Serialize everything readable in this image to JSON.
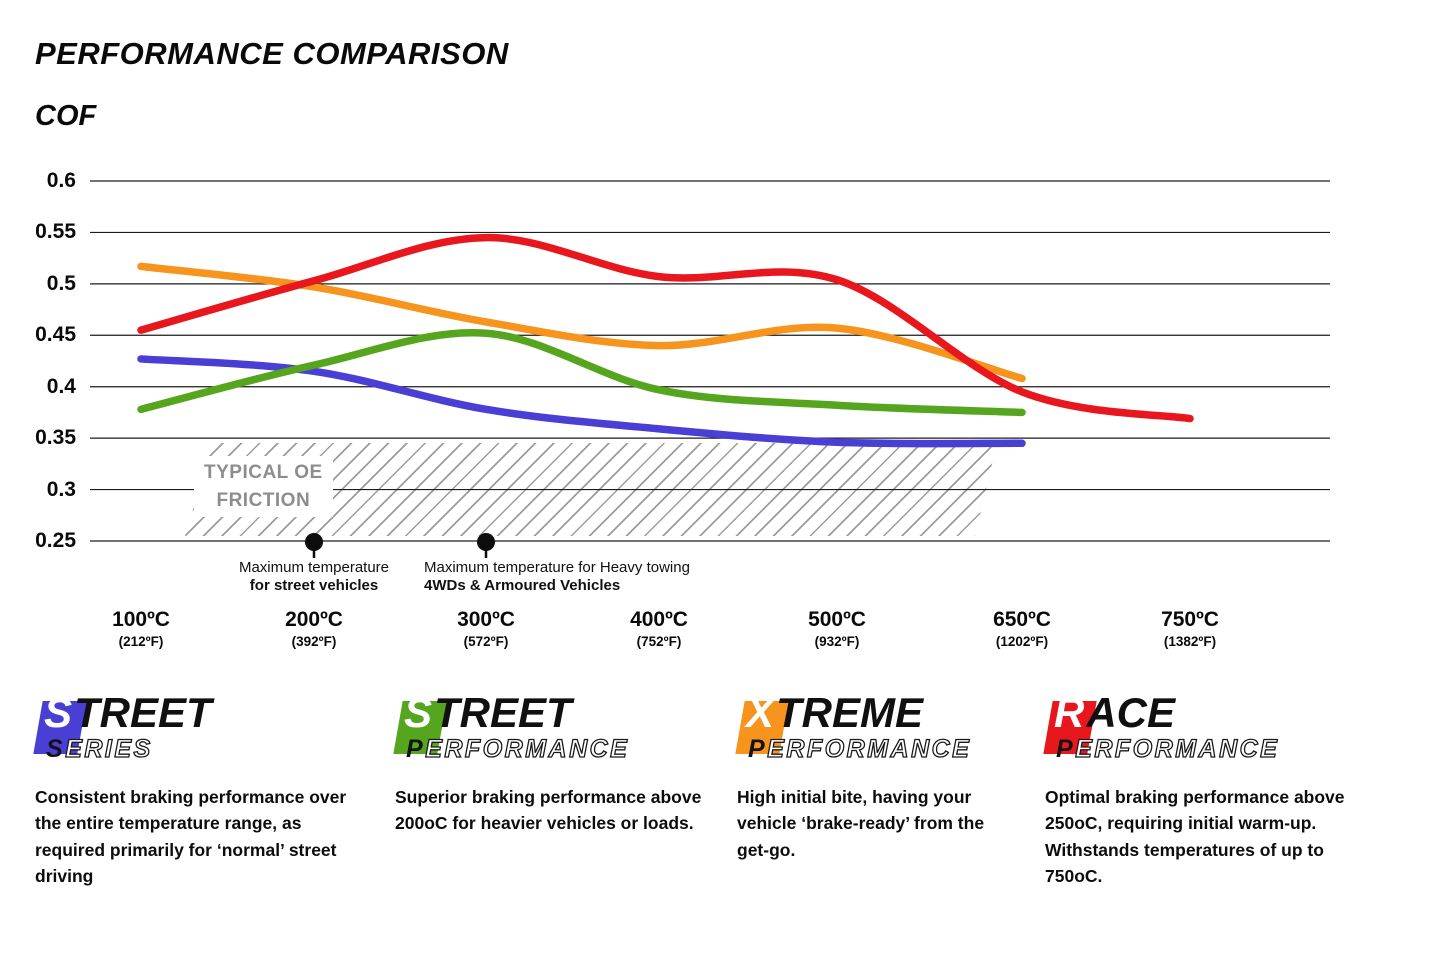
{
  "chart_data": {
    "type": "line",
    "title": "PERFORMANCE COMPARISON",
    "ylabel": "COF",
    "ylim": [
      0.25,
      0.6
    ],
    "grid": true,
    "y_ticks": [
      "0.6",
      "0.55",
      "0.5",
      "0.45",
      "0.4",
      "0.35",
      "0.3",
      "0.25"
    ],
    "y_tick_values": [
      0.6,
      0.55,
      0.5,
      0.45,
      0.4,
      0.35,
      0.3,
      0.25
    ],
    "categories": [
      {
        "c": "100ºC",
        "f": "(212ºF)"
      },
      {
        "c": "200ºC",
        "f": "(392ºF)"
      },
      {
        "c": "300ºC",
        "f": "(572ºF)"
      },
      {
        "c": "400ºC",
        "f": "(752ºF)"
      },
      {
        "c": "500ºC",
        "f": "(932ºF)"
      },
      {
        "c": "650ºC",
        "f": "(1202ºF)"
      },
      {
        "c": "750ºC",
        "f": "(1382ºF)"
      }
    ],
    "series": [
      {
        "name": "Street Series",
        "color": "#4a3fd5",
        "values": [
          0.427,
          0.415,
          0.378,
          0.359,
          0.346,
          0.345
        ]
      },
      {
        "name": "Street Performance",
        "color": "#56a51f",
        "values": [
          0.378,
          0.421,
          0.452,
          0.397,
          0.382,
          0.375
        ]
      },
      {
        "name": "Xtreme Performance",
        "color": "#f7941d",
        "values": [
          0.517,
          0.497,
          0.463,
          0.44,
          0.457,
          0.408
        ]
      },
      {
        "name": "Race Performance",
        "color": "#e8161d",
        "values": [
          0.455,
          0.503,
          0.545,
          0.507,
          0.504,
          0.395,
          0.369
        ]
      }
    ],
    "annotations": {
      "oe_band": {
        "line1": "TYPICAL OE",
        "line2": "FRICTION",
        "band_top": 0.345,
        "band_bottom": 0.252
      },
      "markers": [
        {
          "at": "200ºC",
          "line1": "Maximum temperature",
          "line2": "for street vehicles"
        },
        {
          "at": "300ºC",
          "line1": "Maximum temperature for Heavy towing",
          "line2": "4WDs & Armoured Vehicles"
        }
      ]
    }
  },
  "legend": {
    "items": [
      {
        "name": "Street Series",
        "color": "#4a3fd5",
        "l1_initial": "S",
        "l1_rest": "TREET",
        "l2_initial": "S",
        "l2_rest": "ERIES",
        "desc": "Consistent braking performance over the entire temperature range, as required primarily for ‘normal’ street driving"
      },
      {
        "name": "Street Performance",
        "color": "#56a51f",
        "l1_initial": "S",
        "l1_rest": "TREET",
        "l2_initial": "P",
        "l2_rest": "ERFORMANCE",
        "desc": "Superior braking performance above 200oC for heavier vehicles or loads."
      },
      {
        "name": "Xtreme Performance",
        "color": "#f7941d",
        "l1_initial": "X",
        "l1_rest": "TREME",
        "l2_initial": "P",
        "l2_rest": "ERFORMANCE",
        "desc": "High initial bite, having your vehicle ‘brake-ready’ from the get-go."
      },
      {
        "name": "Race Performance",
        "color": "#e8161d",
        "l1_initial": "R",
        "l1_rest": "ACE",
        "l2_initial": "P",
        "l2_rest": "ERFORMANCE",
        "desc": "Optimal braking performance above 250oC, requiring initial warm-up. Withstands temperatures of up to 750oC."
      }
    ]
  }
}
